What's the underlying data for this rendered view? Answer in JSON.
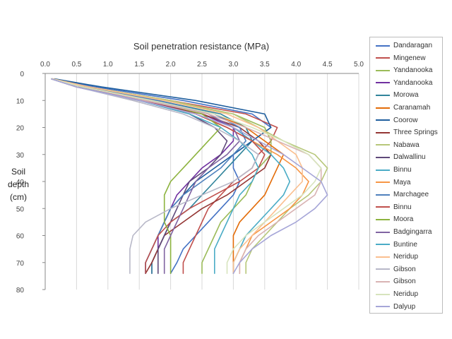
{
  "chart_data": {
    "type": "line",
    "title": "",
    "xlabel": "Soil penetration resistance (MPa)",
    "ylabel": "Soil depth (cm)",
    "xlim": [
      0,
      5
    ],
    "ylim": [
      0,
      80
    ],
    "x_ticks": [
      "0.0",
      "0.5",
      "1.0",
      "1.5",
      "2.0",
      "2.5",
      "3.0",
      "3.5",
      "4.0",
      "4.5",
      "5.0"
    ],
    "y_ticks": [
      "0",
      "10",
      "20",
      "30",
      "40",
      "50",
      "60",
      "70",
      "80"
    ],
    "grid": "vertical",
    "legend": "right",
    "y_depth": [
      2,
      5,
      10,
      15,
      20,
      25,
      30,
      35,
      40,
      45,
      50,
      55,
      60,
      65,
      70,
      74
    ],
    "series": [
      {
        "name": "Dandaragan",
        "color": "#4472c4",
        "x": [
          0.15,
          0.8,
          2.2,
          3.3,
          3.6,
          3.3,
          3.0,
          3.0,
          3.1,
          3.0,
          2.8,
          2.6,
          2.4,
          2.2,
          2.1,
          2.0
        ]
      },
      {
        "name": "Mingenew",
        "color": "#c0504d",
        "x": [
          0.12,
          0.7,
          2.0,
          3.2,
          3.7,
          3.6,
          3.4,
          3.3,
          3.0,
          2.8,
          2.6,
          2.5,
          2.4,
          2.3,
          2.2,
          2.2
        ]
      },
      {
        "name": "Yandanooka",
        "color": "#9bbb59",
        "x": [
          0.1,
          0.6,
          1.9,
          3.0,
          3.5,
          3.6,
          3.6,
          3.4,
          3.3,
          3.2,
          3.0,
          2.8,
          2.7,
          2.6,
          2.5,
          2.5
        ]
      },
      {
        "name": "Yandanooka",
        "color": "#7030a0",
        "x": [
          0.1,
          0.5,
          1.6,
          2.5,
          3.0,
          3.0,
          2.8,
          2.5,
          2.3,
          2.1,
          2.0,
          1.9,
          1.8,
          1.8,
          1.7,
          1.7
        ]
      },
      {
        "name": "Morowa",
        "color": "#31849b",
        "x": [
          0.12,
          0.6,
          1.8,
          2.8,
          3.2,
          3.3,
          3.1,
          2.9,
          2.7,
          2.5,
          2.3,
          2.0,
          1.9,
          1.8,
          1.7,
          1.7
        ]
      },
      {
        "name": "Caranamah",
        "color": "#e36c09",
        "x": [
          0.1,
          0.6,
          1.7,
          2.7,
          3.2,
          3.5,
          3.8,
          3.7,
          3.6,
          3.5,
          3.3,
          3.1,
          3.0,
          3.0,
          3.0,
          3.0
        ]
      },
      {
        "name": "Coorow",
        "color": "#1f5f9e",
        "x": [
          0.15,
          0.9,
          2.4,
          3.5,
          3.6,
          3.3,
          3.0,
          2.7,
          2.4,
          2.2,
          2.0,
          1.9,
          1.8,
          1.7,
          1.6,
          1.6
        ]
      },
      {
        "name": "Three Springs",
        "color": "#943634",
        "x": [
          0.1,
          0.5,
          1.5,
          2.5,
          3.1,
          3.4,
          3.6,
          3.5,
          3.2,
          2.9,
          2.5,
          2.2,
          1.9,
          1.8,
          1.7,
          1.6
        ]
      },
      {
        "name": "Nabawa",
        "color": "#b7c77a",
        "x": [
          0.12,
          0.7,
          2.0,
          3.0,
          3.4,
          3.8,
          4.3,
          4.5,
          4.4,
          4.2,
          3.9,
          3.7,
          3.5,
          3.3,
          3.2,
          3.2
        ]
      },
      {
        "name": "Dalwallinu",
        "color": "#5f497a",
        "x": [
          0.1,
          0.5,
          1.5,
          2.3,
          2.7,
          2.9,
          2.8,
          2.6,
          2.3,
          2.2,
          2.1,
          2.0,
          1.9,
          1.8,
          1.8,
          1.8
        ]
      },
      {
        "name": "Binnu",
        "color": "#4bacc6",
        "x": [
          0.1,
          0.6,
          1.7,
          2.6,
          3.0,
          3.3,
          3.6,
          3.8,
          3.9,
          3.8,
          3.6,
          3.4,
          3.2,
          3.1,
          3.0,
          3.0
        ]
      },
      {
        "name": "Maya",
        "color": "#f79646",
        "x": [
          0.1,
          0.5,
          1.5,
          2.4,
          2.9,
          3.3,
          3.7,
          4.0,
          4.2,
          4.1,
          3.9,
          3.6,
          3.3,
          3.2,
          3.1,
          3.1
        ]
      },
      {
        "name": "Marchagee",
        "color": "#4f81bd",
        "x": [
          0.12,
          0.6,
          1.8,
          2.7,
          3.1,
          3.2,
          3.0,
          2.8,
          2.5,
          2.2,
          2.0,
          1.9,
          1.8,
          1.7,
          1.6,
          1.6
        ]
      },
      {
        "name": "Binnu",
        "color": "#c0504d",
        "x": [
          0.1,
          0.5,
          1.5,
          2.4,
          2.9,
          3.3,
          3.5,
          3.4,
          3.1,
          2.7,
          2.3,
          2.0,
          1.8,
          1.7,
          1.6,
          1.6
        ]
      },
      {
        "name": "Moora",
        "color": "#8db33f",
        "x": [
          0.12,
          0.6,
          1.7,
          2.5,
          2.8,
          2.6,
          2.4,
          2.2,
          2.0,
          1.9,
          1.9,
          1.9,
          2.0,
          2.0,
          2.0,
          2.0
        ]
      },
      {
        "name": "Badgingarra",
        "color": "#8064a2",
        "x": [
          0.1,
          0.6,
          1.7,
          2.6,
          3.0,
          3.1,
          2.9,
          2.6,
          2.4,
          2.3,
          2.2,
          2.1,
          2.0,
          1.9,
          1.9,
          1.9
        ]
      },
      {
        "name": "Buntine",
        "color": "#4bacc6",
        "x": [
          0.1,
          0.5,
          1.5,
          2.3,
          2.8,
          3.1,
          3.3,
          3.4,
          3.3,
          3.1,
          3.0,
          2.9,
          2.8,
          2.7,
          2.7,
          2.7
        ]
      },
      {
        "name": "Neridup",
        "color": "#fabf8f",
        "x": [
          0.12,
          0.7,
          1.9,
          2.9,
          3.4,
          3.7,
          4.0,
          4.1,
          4.1,
          3.9,
          3.7,
          3.5,
          3.3,
          3.1,
          3.0,
          3.0
        ]
      },
      {
        "name": "Gibson",
        "color": "#b8b8c8",
        "x": [
          0.1,
          0.5,
          1.4,
          2.2,
          2.7,
          3.1,
          3.4,
          3.3,
          3.0,
          2.5,
          2.0,
          1.6,
          1.4,
          1.35,
          1.35,
          1.35
        ]
      },
      {
        "name": "Gibson",
        "color": "#d9b3b3",
        "x": [
          0.1,
          0.6,
          1.6,
          2.6,
          3.2,
          3.7,
          4.2,
          4.4,
          4.4,
          4.3,
          4.0,
          3.7,
          3.4,
          3.2,
          3.1,
          3.1
        ]
      },
      {
        "name": "Neridup",
        "color": "#d7e4bd",
        "x": [
          0.1,
          0.6,
          1.7,
          2.7,
          3.3,
          3.8,
          4.2,
          4.4,
          4.3,
          4.1,
          3.8,
          3.5,
          3.2,
          3.0,
          2.9,
          2.9
        ]
      },
      {
        "name": "Dalyup",
        "color": "#a6a6d8",
        "x": [
          0.1,
          0.5,
          1.5,
          2.4,
          3.0,
          3.4,
          3.8,
          4.1,
          4.4,
          4.5,
          4.3,
          4.0,
          3.6,
          3.3,
          3.1,
          3.0
        ]
      }
    ]
  }
}
